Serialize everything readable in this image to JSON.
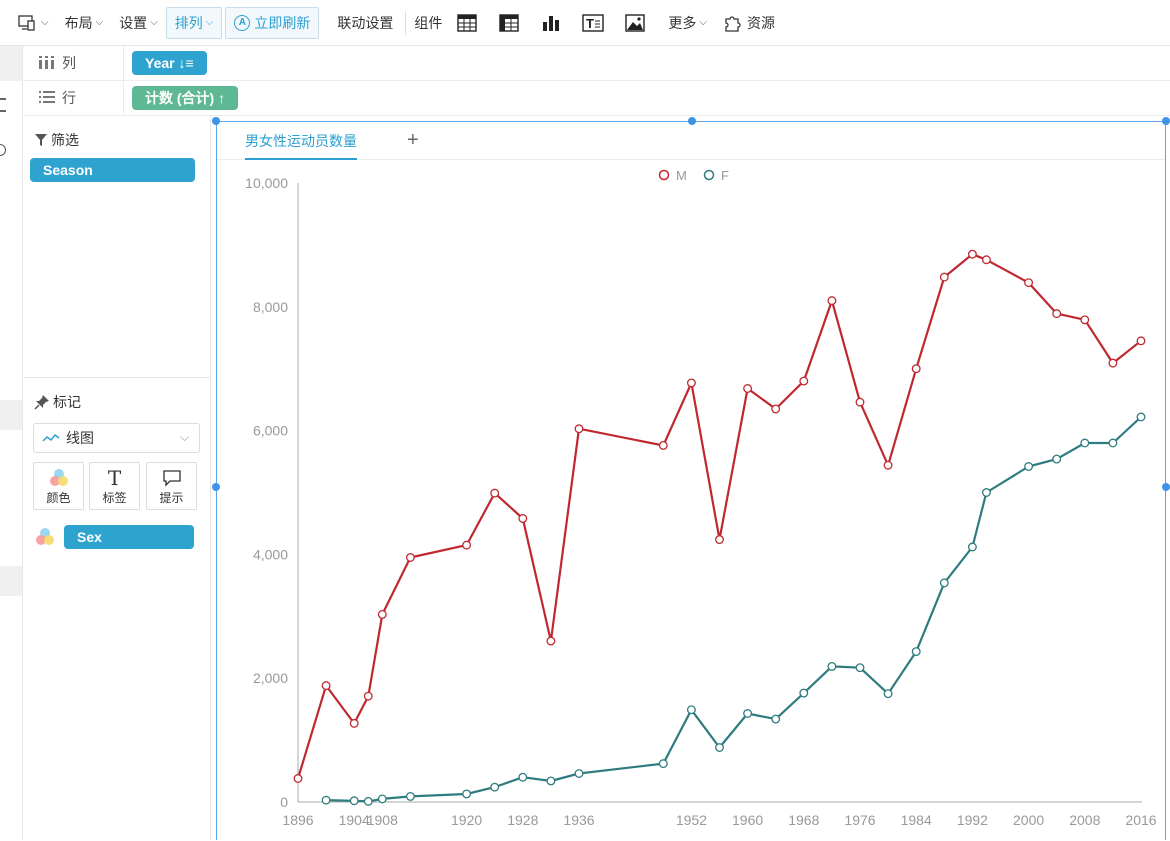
{
  "toolbar": {
    "layout": "布局",
    "settings": "设置",
    "sort": "排列",
    "refresh": "立即刷新",
    "linkage": "联动设置",
    "components": "组件",
    "more": "更多",
    "resources": "资源"
  },
  "shelves": {
    "columns_label": "列",
    "columns_pill": "Year ↓≡",
    "rows_label": "行",
    "rows_pill": "计数 (合计) ↑"
  },
  "filter": {
    "title": "筛选",
    "pill": "Season"
  },
  "marks": {
    "title": "标记",
    "chart_type": "线图",
    "color": "颜色",
    "label": "标签",
    "tooltip": "提示",
    "color_field": "Sex"
  },
  "tabs": {
    "active": "男女性运动员数量",
    "add": "+"
  },
  "colors": {
    "accent": "#2b9fd0",
    "male": "#c0282f",
    "female": "#2e7b80"
  },
  "chart_data": {
    "type": "line",
    "title": "",
    "xlabel": "",
    "ylabel": "",
    "legend": [
      "M",
      "F"
    ],
    "legend_position": "top-center",
    "ylim": [
      0,
      10000
    ],
    "yticks": [
      "0",
      "2,000",
      "4,000",
      "6,000",
      "8,000",
      "10,000"
    ],
    "xticks": [
      "1896",
      "1904",
      "1908",
      "1920",
      "1928",
      "1936",
      "1952",
      "1960",
      "1968",
      "1976",
      "1984",
      "1992",
      "2000",
      "2008",
      "2016"
    ],
    "series": [
      {
        "name": "M",
        "x": [
          1896,
          1900,
          1904,
          1906,
          1908,
          1912,
          1920,
          1924,
          1928,
          1932,
          1936,
          1948,
          1952,
          1956,
          1960,
          1964,
          1968,
          1972,
          1976,
          1980,
          1984,
          1988,
          1992,
          1994,
          2000,
          2004,
          2008,
          2012,
          2016
        ],
        "values": [
          380,
          1880,
          1270,
          1710,
          3030,
          3950,
          4150,
          4990,
          4580,
          2600,
          6030,
          5760,
          6770,
          4240,
          6680,
          6350,
          6800,
          8100,
          6460,
          5440,
          7000,
          8480,
          8850,
          8760,
          8390,
          7890,
          7790,
          7090,
          7450
        ]
      },
      {
        "name": "F",
        "x": [
          1900,
          1904,
          1906,
          1908,
          1912,
          1920,
          1924,
          1928,
          1932,
          1936,
          1948,
          1952,
          1956,
          1960,
          1964,
          1968,
          1972,
          1976,
          1980,
          1984,
          1988,
          1992,
          1994,
          2000,
          2004,
          2008,
          2012,
          2016
        ],
        "values": [
          30,
          20,
          10,
          50,
          90,
          130,
          240,
          400,
          340,
          460,
          620,
          1490,
          880,
          1430,
          1340,
          1760,
          2190,
          2170,
          1750,
          2430,
          3540,
          4120,
          5000,
          5420,
          5540,
          5800,
          5800,
          6220
        ]
      }
    ]
  }
}
